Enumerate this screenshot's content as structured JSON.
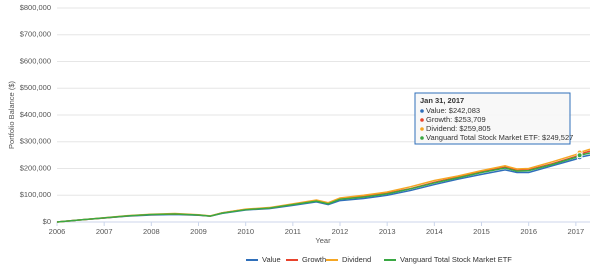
{
  "chart_data": {
    "type": "line",
    "x_label": "Year",
    "y_label": "Portfolio Balance ($)",
    "x": [
      2006,
      2006.5,
      2007,
      2007.5,
      2008,
      2008.5,
      2009,
      2009.25,
      2009.5,
      2010,
      2010.5,
      2011,
      2011.5,
      2011.75,
      2012,
      2012.5,
      2013,
      2013.5,
      2014,
      2014.5,
      2015,
      2015.5,
      2015.75,
      2016,
      2016.5,
      2017,
      2017.08,
      2017.3
    ],
    "series": [
      {
        "name": "Value",
        "color": "#2f6fba",
        "values": [
          0,
          8000,
          15000,
          22000,
          26000,
          28000,
          25000,
          22000,
          32000,
          45000,
          50000,
          62000,
          75000,
          65000,
          80000,
          88000,
          100000,
          118000,
          140000,
          160000,
          178000,
          195000,
          185000,
          185000,
          210000,
          235000,
          242083,
          250000
        ]
      },
      {
        "name": "Growth",
        "color": "#e8432c",
        "values": [
          0,
          8000,
          15000,
          23000,
          28000,
          30000,
          26000,
          22000,
          34000,
          47000,
          52000,
          66000,
          80000,
          70000,
          88000,
          96000,
          108000,
          125000,
          148000,
          168000,
          188000,
          205000,
          193000,
          195000,
          218000,
          245000,
          253709,
          265000
        ]
      },
      {
        "name": "Dividend",
        "color": "#f5a623",
        "values": [
          0,
          8000,
          16000,
          24000,
          29000,
          32000,
          27000,
          23000,
          34000,
          48000,
          54000,
          68000,
          82000,
          72000,
          90000,
          100000,
          112000,
          132000,
          155000,
          172000,
          192000,
          210000,
          198000,
          200000,
          225000,
          252000,
          259805,
          272000
        ]
      },
      {
        "name": "Vanguard Total Stock Market ETF",
        "color": "#3aa843",
        "values": [
          0,
          8000,
          15500,
          23000,
          28000,
          30000,
          26000,
          22000,
          33000,
          46000,
          52000,
          65000,
          78000,
          68000,
          85000,
          93000,
          105000,
          124000,
          146000,
          165000,
          185000,
          202000,
          190000,
          192000,
          215000,
          242000,
          249527,
          258000
        ]
      }
    ],
    "xlim": [
      2006,
      2017.3
    ],
    "xticks": [
      2006,
      2007,
      2008,
      2009,
      2010,
      2011,
      2012,
      2013,
      2014,
      2015,
      2016,
      2017
    ],
    "ylim": [
      0,
      800000
    ],
    "yticks": [
      {
        "value": 0,
        "label": "$0"
      },
      {
        "value": 100000,
        "label": "$100,000"
      },
      {
        "value": 200000,
        "label": "$200,000"
      },
      {
        "value": 300000,
        "label": "$300,000"
      },
      {
        "value": 400000,
        "label": "$400,000"
      },
      {
        "value": 500000,
        "label": "$500,000"
      },
      {
        "value": 600000,
        "label": "$600,000"
      },
      {
        "value": 700000,
        "label": "$700,000"
      },
      {
        "value": 800000,
        "label": "$800,000"
      }
    ],
    "grid": true,
    "legend": "bottom",
    "tooltip": {
      "title": "Jan 31, 2017",
      "index": 26,
      "items": [
        "Value: $242,083",
        "Growth: $253,709",
        "Dividend: $259,805",
        "Vanguard Total Stock Market ETF: $249,527"
      ]
    }
  }
}
